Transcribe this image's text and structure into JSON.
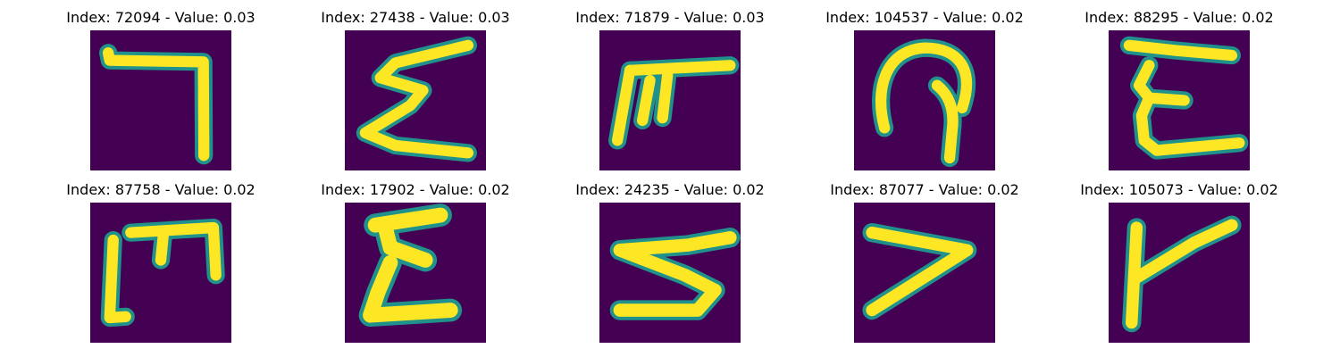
{
  "figure": {
    "panels": [
      {
        "title": "Index: 72094 - Value: 0.03",
        "glyph": "bracket-hook"
      },
      {
        "title": "Index: 27438 - Value: 0.03",
        "glyph": "sigma-zigzag"
      },
      {
        "title": "Index: 71879 - Value: 0.03",
        "glyph": "pi-tee"
      },
      {
        "title": "Index: 104537 - Value: 0.02",
        "glyph": "loop-hook"
      },
      {
        "title": "Index: 88295 - Value: 0.02",
        "glyph": "epsilon"
      },
      {
        "title": "Index: 87758 - Value: 0.02",
        "glyph": "bracket-m"
      },
      {
        "title": "Index: 17902 - Value: 0.02",
        "glyph": "epsilon-bold"
      },
      {
        "title": "Index: 24235 - Value: 0.02",
        "glyph": "s-zigzag"
      },
      {
        "title": "Index: 87077 - Value: 0.02",
        "glyph": "angle-seven"
      },
      {
        "title": "Index: 105073 - Value: 0.02",
        "glyph": "k-branch"
      }
    ],
    "colors": {
      "background": "#440154",
      "stroke_core": "#fde725",
      "stroke_edge": "#21918c"
    }
  }
}
